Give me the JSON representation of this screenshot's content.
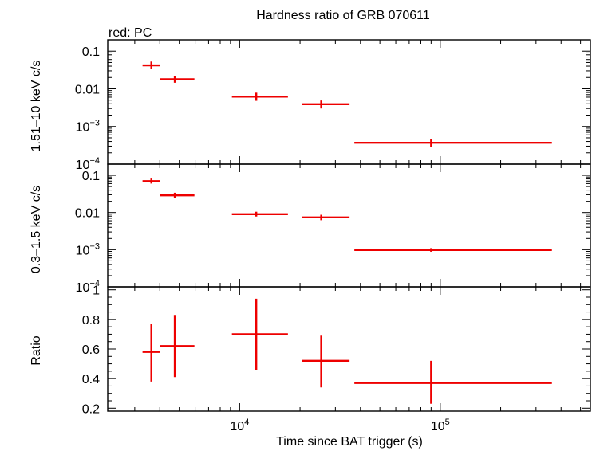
{
  "chart_data": {
    "type": "scatter",
    "title": "Hardness ratio of GRB 070611",
    "subtitle": "red: PC",
    "xlabel": "Time since BAT trigger (s)",
    "xscale": "log",
    "xlim": [
      2200,
      560000
    ],
    "x_ticklabels": [
      {
        "value": 10000,
        "base": "10",
        "exp": "4"
      },
      {
        "value": 100000,
        "base": "10",
        "exp": "5"
      }
    ],
    "panels": [
      {
        "id": "hard",
        "ylabel": "1.51–10 keV c/s",
        "yscale": "log",
        "ylim": [
          0.0001,
          0.2
        ],
        "yticklabels": [
          {
            "value": 0.1,
            "text": "0.1"
          },
          {
            "value": 0.01,
            "text": "0.01"
          },
          {
            "value": 0.001,
            "base": "10",
            "exp": "−3"
          },
          {
            "value": 0.0001,
            "base": "10",
            "exp": "−4"
          }
        ],
        "points": [
          {
            "x": 3630,
            "xlo": 3280,
            "xhi": 4020,
            "y": 0.042,
            "ylo": 0.033,
            "yhi": 0.053
          },
          {
            "x": 4750,
            "xlo": 4020,
            "xhi": 5950,
            "y": 0.018,
            "ylo": 0.0145,
            "yhi": 0.022
          },
          {
            "x": 12100,
            "xlo": 9150,
            "xhi": 17400,
            "y": 0.0062,
            "ylo": 0.0048,
            "yhi": 0.0079
          },
          {
            "x": 25500,
            "xlo": 20400,
            "xhi": 35300,
            "y": 0.0039,
            "ylo": 0.003,
            "yhi": 0.0049
          },
          {
            "x": 90000,
            "xlo": 37300,
            "xhi": 360000,
            "y": 0.00037,
            "ylo": 0.00029,
            "yhi": 0.00046
          }
        ]
      },
      {
        "id": "soft",
        "ylabel": "0.3–1.5 keV c/s",
        "yscale": "log",
        "ylim": [
          0.0001,
          0.2
        ],
        "yticklabels": [
          {
            "value": 0.1,
            "text": "0.1"
          },
          {
            "value": 0.01,
            "text": "0.01"
          },
          {
            "value": 0.001,
            "base": "10",
            "exp": "−3"
          },
          {
            "value": 0.0001,
            "base": "10",
            "exp": "−4"
          }
        ],
        "points": [
          {
            "x": 3630,
            "xlo": 3280,
            "xhi": 4020,
            "y": 0.07,
            "ylo": 0.06,
            "yhi": 0.082
          },
          {
            "x": 4750,
            "xlo": 4020,
            "xhi": 5950,
            "y": 0.029,
            "ylo": 0.025,
            "yhi": 0.034
          },
          {
            "x": 12100,
            "xlo": 9150,
            "xhi": 17400,
            "y": 0.009,
            "ylo": 0.0078,
            "yhi": 0.0105
          },
          {
            "x": 25500,
            "xlo": 20400,
            "xhi": 35300,
            "y": 0.0074,
            "ylo": 0.0062,
            "yhi": 0.0087
          },
          {
            "x": 90000,
            "xlo": 37300,
            "xhi": 360000,
            "y": 0.00098,
            "ylo": 0.00088,
            "yhi": 0.0011
          }
        ]
      },
      {
        "id": "ratio",
        "ylabel": "Ratio",
        "yscale": "linear",
        "ylim": [
          0.18,
          1.02
        ],
        "yticklabels": [
          {
            "value": 0.2,
            "text": "0.2"
          },
          {
            "value": 0.4,
            "text": "0.4"
          },
          {
            "value": 0.6,
            "text": "0.6"
          },
          {
            "value": 0.8,
            "text": "0.8"
          },
          {
            "value": 1.0,
            "text": "1"
          }
        ],
        "points": [
          {
            "x": 3630,
            "xlo": 3280,
            "xhi": 4020,
            "y": 0.58,
            "ylo": 0.38,
            "yhi": 0.77
          },
          {
            "x": 4750,
            "xlo": 4020,
            "xhi": 5950,
            "y": 0.62,
            "ylo": 0.41,
            "yhi": 0.83
          },
          {
            "x": 12100,
            "xlo": 9150,
            "xhi": 17400,
            "y": 0.7,
            "ylo": 0.46,
            "yhi": 0.94
          },
          {
            "x": 25500,
            "xlo": 20400,
            "xhi": 35300,
            "y": 0.52,
            "ylo": 0.34,
            "yhi": 0.69
          },
          {
            "x": 90000,
            "xlo": 37300,
            "xhi": 360000,
            "y": 0.37,
            "ylo": 0.23,
            "yhi": 0.52
          }
        ]
      }
    ],
    "series_color": "#ee0000",
    "grid": false,
    "legend": "none"
  }
}
